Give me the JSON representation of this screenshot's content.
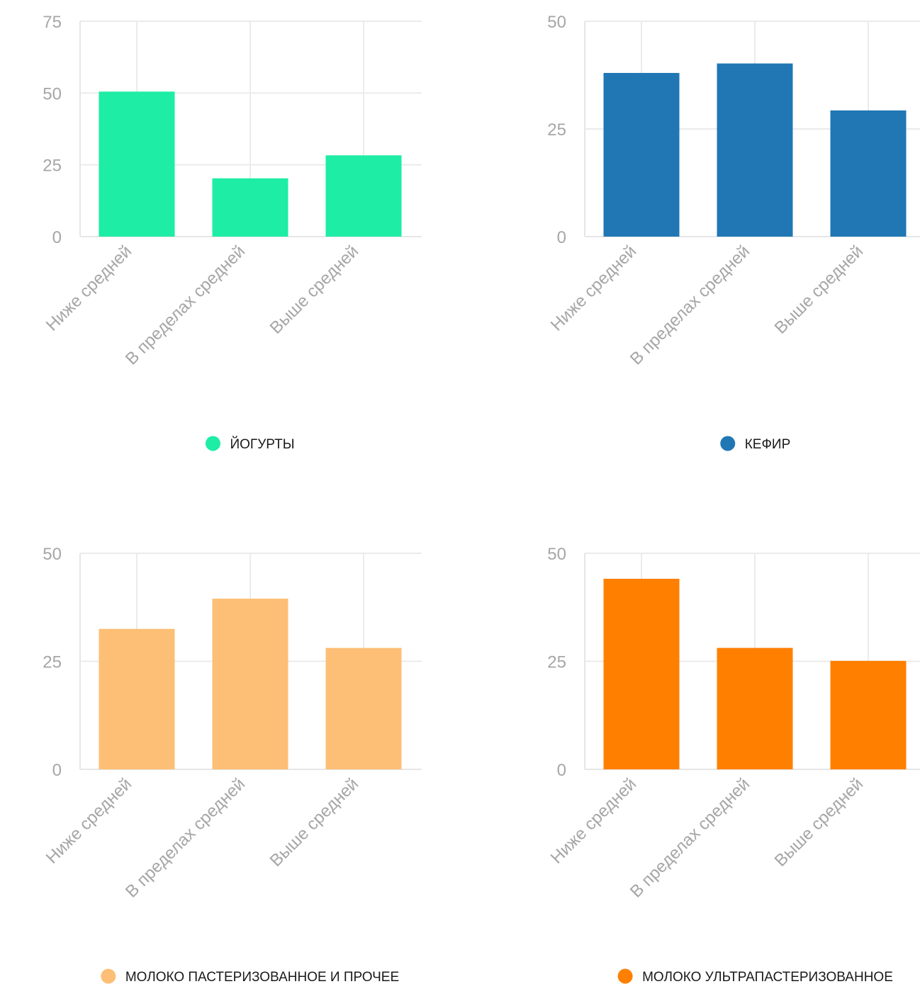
{
  "chart_data": [
    {
      "type": "bar",
      "categories": [
        "Ниже средней",
        "В пределах средней",
        "Выше средней"
      ],
      "series": [
        {
          "name": "ЙОГУРТЫ",
          "values": [
            50.5,
            20.3,
            28.3
          ]
        }
      ],
      "ylim": [
        0,
        75
      ],
      "yticks": [
        "0",
        "25",
        "50",
        "75"
      ],
      "grid": true,
      "legend": "bottom-center",
      "color": "#1ded a5"
    },
    {
      "type": "bar",
      "categories": [
        "Ниже средней",
        "В пределах средней",
        "Выше средней"
      ],
      "series": [
        {
          "name": "КЕФИР",
          "values": [
            38,
            40.2,
            29.3
          ]
        }
      ],
      "ylim": [
        0,
        50
      ],
      "yticks": [
        "0",
        "25",
        "50"
      ],
      "grid": true,
      "legend": "bottom-center",
      "color": "#2077b4"
    },
    {
      "type": "bar",
      "categories": [
        "Ниже средней",
        "В пределах средней",
        "Выше средней"
      ],
      "series": [
        {
          "name": "МОЛОКО ПАСТЕРИЗОВАННОЕ И ПРОЧЕЕ",
          "values": [
            32.5,
            39.5,
            28.1
          ]
        }
      ],
      "ylim": [
        0,
        50
      ],
      "yticks": [
        "0",
        "25",
        "50"
      ],
      "grid": true,
      "legend": "bottom-center",
      "color": "#fdbf75"
    },
    {
      "type": "bar",
      "categories": [
        "Ниже средней",
        "В пределах средней",
        "Выше средней"
      ],
      "series": [
        {
          "name": "МОЛОКО УЛЬТРАПАСТЕРИЗОВАННОЕ",
          "values": [
            44.1,
            28.1,
            25.1
          ]
        }
      ],
      "ylim": [
        0,
        50
      ],
      "yticks": [
        "0",
        "25",
        "50"
      ],
      "grid": true,
      "legend": "bottom-center",
      "color": "#ff8000"
    }
  ]
}
